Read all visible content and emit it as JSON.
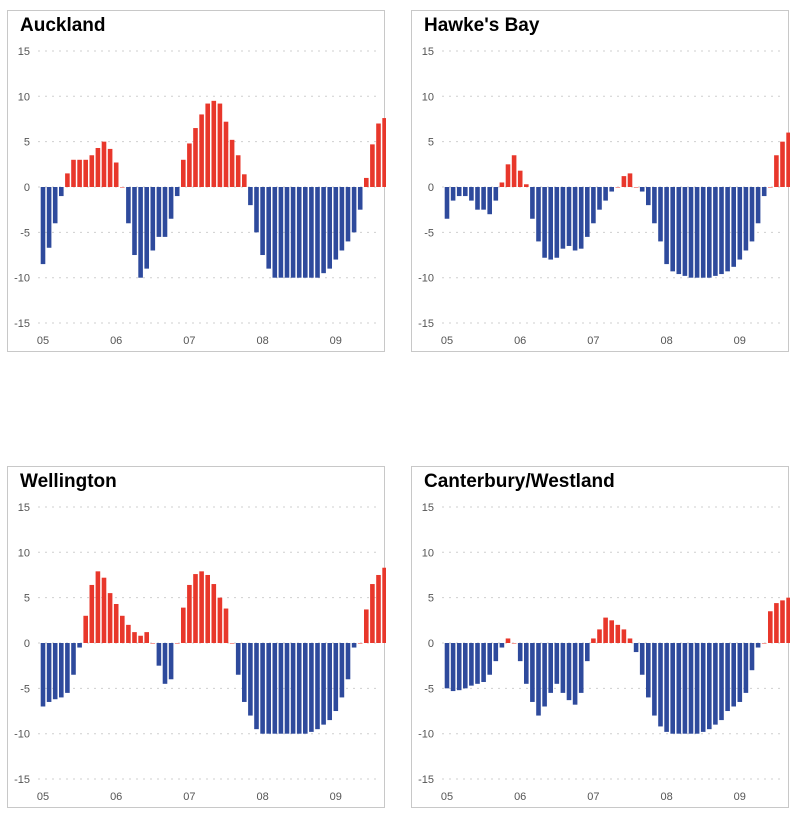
{
  "chart_data": [
    {
      "type": "bar",
      "title": "Auckland",
      "ylim": [
        -15,
        15
      ],
      "yticks": [
        15,
        10,
        5,
        0,
        -5,
        -10,
        -15
      ],
      "xticks": [
        "05",
        "06",
        "07",
        "08",
        "09"
      ],
      "grid": true,
      "colors": {
        "positive": "#e8372b",
        "negative": "#2e4a9c"
      },
      "values": [
        -8.5,
        -6.7,
        -4,
        -1,
        1.5,
        3,
        3,
        3,
        3.5,
        4.3,
        5,
        4.2,
        2.7,
        0,
        -4,
        -7.5,
        -10,
        -9,
        -7,
        -5.5,
        -5.5,
        -3.5,
        -1,
        3,
        4.8,
        6.5,
        8,
        9.2,
        9.5,
        9.2,
        7.2,
        5.2,
        3.5,
        1.4,
        -2,
        -5,
        -7.5,
        -9,
        -10,
        -10,
        -10,
        -10,
        -10,
        -10,
        -10,
        -10,
        -9.5,
        -9,
        -8,
        -7,
        -6,
        -5,
        -2.5,
        1,
        4.7,
        7,
        7.6,
        8.3
      ]
    },
    {
      "type": "bar",
      "title": "Hawke's Bay",
      "ylim": [
        -15,
        15
      ],
      "yticks": [
        15,
        10,
        5,
        0,
        -5,
        -10,
        -15
      ],
      "xticks": [
        "05",
        "06",
        "07",
        "08",
        "09"
      ],
      "grid": true,
      "colors": {
        "positive": "#e8372b",
        "negative": "#2e4a9c"
      },
      "values": [
        -3.5,
        -1.5,
        -1,
        -1,
        -1.5,
        -2.5,
        -2.5,
        -3,
        -1.5,
        0.5,
        2.5,
        3.5,
        1.8,
        0.3,
        -3.5,
        -6,
        -7.8,
        -8,
        -7.8,
        -6.8,
        -6.5,
        -7,
        -6.8,
        -5.5,
        -4,
        -2.5,
        -1.5,
        -0.5,
        0,
        1.2,
        1.5,
        0,
        -0.5,
        -2,
        -4,
        -6,
        -8.5,
        -9.3,
        -9.6,
        -9.8,
        -10,
        -10,
        -10,
        -10,
        -9.8,
        -9.6,
        -9.3,
        -8.8,
        -8,
        -7,
        -6,
        -4,
        -1,
        0,
        3.5,
        5,
        6,
        6
      ]
    },
    {
      "type": "bar",
      "title": "Wellington",
      "ylim": [
        -15,
        15
      ],
      "yticks": [
        15,
        10,
        5,
        0,
        -5,
        -10,
        -15
      ],
      "xticks": [
        "05",
        "06",
        "07",
        "08",
        "09"
      ],
      "grid": true,
      "colors": {
        "positive": "#e8372b",
        "negative": "#2e4a9c"
      },
      "values": [
        -7,
        -6.5,
        -6.2,
        -6,
        -5.5,
        -3.5,
        -0.5,
        3,
        6.4,
        7.9,
        7.2,
        5.5,
        4.3,
        3,
        2,
        1.2,
        0.8,
        1.2,
        0,
        -2.5,
        -4.5,
        -4,
        0,
        3.9,
        6.4,
        7.6,
        7.9,
        7.5,
        6.5,
        5,
        3.8,
        0,
        -3.5,
        -6.5,
        -8,
        -9.5,
        -10,
        -10,
        -10,
        -10,
        -10,
        -10,
        -10,
        -10,
        -9.8,
        -9.5,
        -9,
        -8.5,
        -7.5,
        -6,
        -4,
        -0.5,
        0,
        3.7,
        6.5,
        7.5,
        8.3,
        8.5
      ]
    },
    {
      "type": "bar",
      "title": "Canterbury/Westland",
      "ylim": [
        -15,
        15
      ],
      "yticks": [
        15,
        10,
        5,
        0,
        -5,
        -10,
        -15
      ],
      "xticks": [
        "05",
        "06",
        "07",
        "08",
        "09"
      ],
      "grid": true,
      "colors": {
        "positive": "#e8372b",
        "negative": "#2e4a9c"
      },
      "values": [
        -5,
        -5.3,
        -5.2,
        -5,
        -4.7,
        -4.5,
        -4.3,
        -3.5,
        -2,
        -0.5,
        0.5,
        0,
        -2,
        -4.5,
        -6.5,
        -8,
        -7,
        -5.5,
        -4.5,
        -5.5,
        -6.3,
        -6.8,
        -5.5,
        -2,
        0.5,
        1.5,
        2.8,
        2.5,
        2,
        1.5,
        0.5,
        -1,
        -3.5,
        -6,
        -8,
        -9.2,
        -9.8,
        -10,
        -10,
        -10,
        -10,
        -10,
        -9.8,
        -9.5,
        -9,
        -8.5,
        -7.5,
        -7,
        -6.5,
        -5.5,
        -3,
        -0.5,
        0,
        3.5,
        4.4,
        4.7,
        5,
        5
      ]
    }
  ]
}
